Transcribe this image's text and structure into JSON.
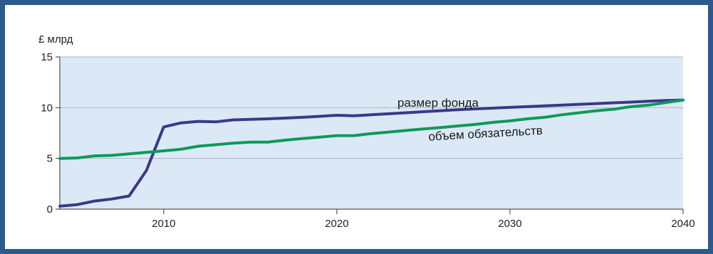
{
  "chart_data": {
    "type": "line",
    "title": "",
    "unit_label": "£ млрд",
    "xlabel": "",
    "ylabel": "£ млрд",
    "xlim": [
      2004,
      2040
    ],
    "ylim": [
      0,
      15
    ],
    "x_ticks": [
      2010,
      2020,
      2030,
      2040
    ],
    "y_ticks": [
      0,
      5,
      10,
      15
    ],
    "x_tick_labels": [
      "2010",
      "2020",
      "2030",
      "2040"
    ],
    "y_tick_labels": [
      "0",
      "5",
      "10",
      "15"
    ],
    "grid": "horizontal",
    "legend": "inline labels",
    "colors": {
      "plot_background": "#dbe9f7",
      "fund": "#39398a",
      "liabilities": "#0f9a58",
      "grid": "#aeb5bd",
      "frame_border": "#2b5a8c"
    },
    "series": [
      {
        "name": "размер фонда",
        "color": "#39398a",
        "x": [
          2004,
          2005,
          2006,
          2007,
          2008,
          2009,
          2010,
          2011,
          2012,
          2013,
          2014,
          2015,
          2016,
          2017,
          2018,
          2019,
          2020,
          2021,
          2022,
          2023,
          2024,
          2025,
          2026,
          2027,
          2028,
          2029,
          2030,
          2031,
          2032,
          2033,
          2034,
          2035,
          2036,
          2037,
          2038,
          2039,
          2040
        ],
        "values": [
          0.3,
          0.45,
          0.8,
          1.0,
          1.3,
          3.8,
          8.1,
          8.5,
          8.65,
          8.6,
          8.8,
          8.85,
          8.9,
          8.97,
          9.05,
          9.15,
          9.25,
          9.2,
          9.3,
          9.4,
          9.5,
          9.6,
          9.7,
          9.8,
          9.88,
          9.95,
          10.03,
          10.1,
          10.18,
          10.25,
          10.33,
          10.4,
          10.48,
          10.55,
          10.63,
          10.7,
          10.75
        ]
      },
      {
        "name": "объем обязательств",
        "color": "#0f9a58",
        "x": [
          2004,
          2005,
          2006,
          2007,
          2008,
          2009,
          2010,
          2011,
          2012,
          2013,
          2014,
          2015,
          2016,
          2017,
          2018,
          2019,
          2020,
          2021,
          2022,
          2023,
          2024,
          2025,
          2026,
          2027,
          2028,
          2029,
          2030,
          2031,
          2032,
          2033,
          2034,
          2035,
          2036,
          2037,
          2038,
          2039,
          2040
        ],
        "values": [
          5.0,
          5.05,
          5.25,
          5.3,
          5.45,
          5.6,
          5.75,
          5.9,
          6.2,
          6.35,
          6.5,
          6.6,
          6.6,
          6.8,
          6.95,
          7.1,
          7.25,
          7.25,
          7.45,
          7.6,
          7.75,
          7.9,
          8.05,
          8.2,
          8.35,
          8.55,
          8.7,
          8.9,
          9.05,
          9.3,
          9.5,
          9.7,
          9.85,
          10.1,
          10.25,
          10.5,
          10.75
        ]
      }
    ]
  }
}
